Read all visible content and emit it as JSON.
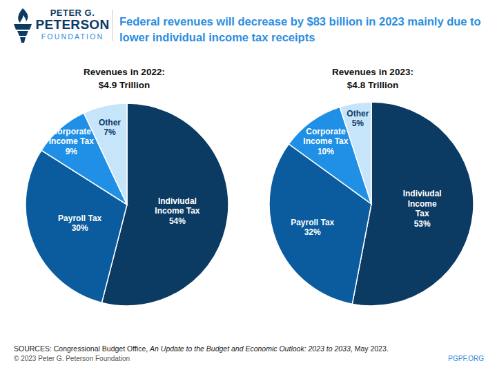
{
  "logo": [
    "PETER G.",
    "PETERSON",
    "FOUNDATION"
  ],
  "title": "Federal revenues will decrease by $83 billion in 2023 mainly due to lower individual income tax receipts",
  "sources": [
    "SOURCES: Congressional Budget Office, ",
    "An Update to the Budget and Economic Outlook: 2023 to 2033",
    ", May 2023."
  ],
  "copyright": "© 2023 Peter G. Peterson Foundation",
  "website": "PGPF.ORG",
  "chart_data": [
    {
      "type": "pie",
      "title": "Revenues in 2022:",
      "subtitle": "$4.9 Trillion",
      "categories": [
        "Indiviudal Income Tax",
        "Payroll Tax",
        "Corporate Income Tax",
        "Other"
      ],
      "values": [
        54,
        30,
        9,
        7
      ],
      "value_labels": [
        "54%",
        "30%",
        "9%",
        "7%"
      ],
      "colors": [
        "#0b3a63",
        "#0b5c9e",
        "#1f90e6",
        "#c6e5fa"
      ],
      "data_labels": true
    },
    {
      "type": "pie",
      "title": "Revenues in 2023:",
      "subtitle": "$4.8 Trillion",
      "categories": [
        "Indiviudal Income Tax",
        "Payroll Tax",
        "Corporate Income Tax",
        "Other"
      ],
      "values": [
        53,
        32,
        10,
        5
      ],
      "value_labels": [
        "53%",
        "32%",
        "10%",
        "5%"
      ],
      "colors": [
        "#0b3a63",
        "#0b5c9e",
        "#1f90e6",
        "#c6e5fa"
      ],
      "data_labels": true
    }
  ]
}
